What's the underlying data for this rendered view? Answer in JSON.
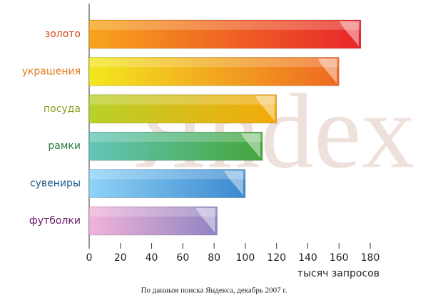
{
  "chart_data": {
    "type": "hbar",
    "watermark": "Яndex",
    "categories": [
      "золото",
      "украшения",
      "посуда",
      "рамки",
      "сувениры",
      "футболки"
    ],
    "values": [
      174,
      160,
      120,
      111,
      100,
      82
    ],
    "colors": [
      [
        "#f7a51c",
        "#e8262b"
      ],
      [
        "#f3e81e",
        "#f06822"
      ],
      [
        "#b9d12a",
        "#f5a90a"
      ],
      [
        "#63c6b8",
        "#45a53c"
      ],
      [
        "#8fd3f6",
        "#3b88cf"
      ],
      [
        "#f2b4d9",
        "#8f84c2"
      ]
    ],
    "label_colors": [
      "#d4471b",
      "#e07c1a",
      "#8aa11f",
      "#2c7a3a",
      "#1e5b8c",
      "#6b2170"
    ],
    "xlim": [
      0,
      180
    ],
    "xticks": [
      0,
      20,
      40,
      60,
      80,
      100,
      120,
      140,
      160,
      180
    ],
    "xlabel": "тысяч запросов",
    "note": "По данным поиска Яндекса, декабрь 2007 г."
  }
}
